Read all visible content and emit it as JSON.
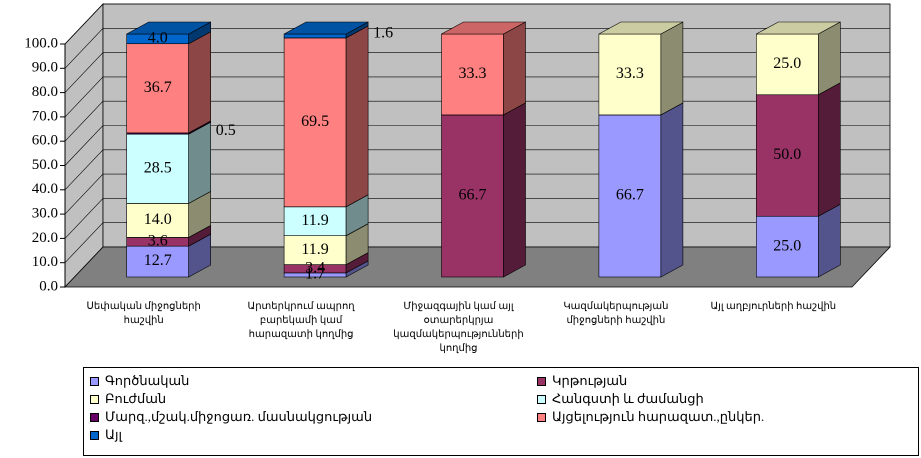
{
  "chart_data": {
    "type": "stacked-bar-3d",
    "categories": [
      "Սեփական միջոցների հաշվին",
      "Արտերկրում ապրող բարեկամի կամ հարազատի կողմից",
      "Միջազգային կամ այլ օտարերկրյա կազմակերպությունների կողմից",
      "Կազմակերպության միջոցների հաշվին",
      "Այլ աղբյուրների հաշվին"
    ],
    "series": [
      {
        "name": "Գործնական",
        "color": "#9999ff",
        "values": [
          12.7,
          1.7,
          null,
          66.7,
          25.0
        ],
        "value_labels": [
          "12.7",
          "1.7",
          null,
          "66.7",
          "25.0"
        ]
      },
      {
        "name": "Կրթության",
        "color": "#993366",
        "values": [
          3.6,
          3.4,
          66.7,
          null,
          50.0
        ],
        "value_labels": [
          "3.6",
          "3.4",
          "66.7",
          null,
          "50.0"
        ]
      },
      {
        "name": "Բուժման",
        "color": "#ffffcc",
        "values": [
          14.0,
          11.9,
          null,
          33.3,
          25.0
        ],
        "value_labels": [
          "14.0",
          "11.9",
          null,
          "33.3",
          "25.0"
        ]
      },
      {
        "name": "Հանգստի և ժամանցի",
        "color": "#ccffff",
        "values": [
          28.5,
          11.9,
          null,
          null,
          null
        ],
        "value_labels": [
          "28.5",
          "11.9",
          null,
          null,
          null
        ]
      },
      {
        "name": "Մարզ.,մշակ.միջոցառ. մասնակցության",
        "color": "#660066",
        "values": [
          0.5,
          null,
          null,
          null,
          null
        ],
        "value_labels": [
          "0.5",
          null,
          null,
          null,
          null
        ]
      },
      {
        "name": "Այցելություն հարազատ.,ընկեր.",
        "color": "#ff8080",
        "values": [
          36.7,
          69.5,
          33.3,
          null,
          null
        ],
        "value_labels": [
          "36.7",
          "69.5",
          "33.3",
          null,
          null
        ]
      },
      {
        "name": "Այլ",
        "color": "#0066cc",
        "values": [
          4.0,
          1.6,
          null,
          null,
          null
        ],
        "value_labels": [
          "4.0",
          "1.6",
          null,
          null,
          null
        ]
      }
    ],
    "ylim": [
      0,
      100
    ],
    "yticks": [
      {
        "value": 0,
        "label": "0.0"
      },
      {
        "value": 10,
        "label": "10.0"
      },
      {
        "value": 20,
        "label": "20.0"
      },
      {
        "value": 30,
        "label": "30.0"
      },
      {
        "value": 40,
        "label": "40.0"
      },
      {
        "value": 50,
        "label": "50.0"
      },
      {
        "value": 60,
        "label": "60.0"
      },
      {
        "value": 70,
        "label": "70.0"
      },
      {
        "value": 80,
        "label": "80.0"
      },
      {
        "value": 90,
        "label": "90.0"
      },
      {
        "value": 100,
        "label": "100.0"
      }
    ],
    "grid": true,
    "legend": "bottom"
  }
}
